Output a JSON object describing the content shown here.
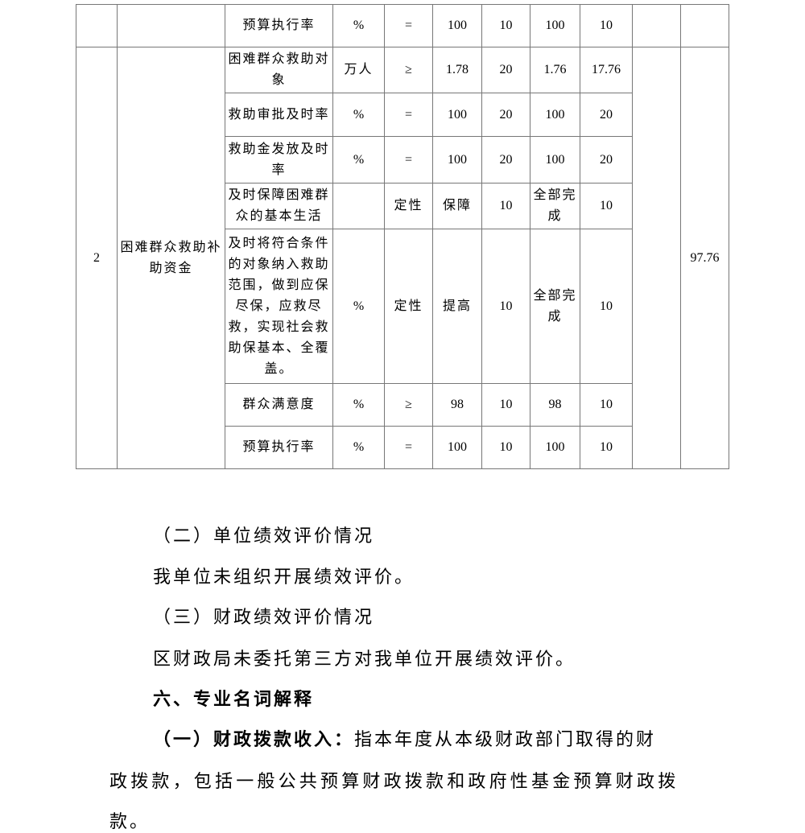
{
  "table": {
    "top_row": {
      "indicator": "预算执行率",
      "unit": "%",
      "op": "=",
      "target": "100",
      "weight": "10",
      "actual": "100",
      "score": "10"
    },
    "group": {
      "index": "2",
      "project": "困难群众救助补助资金",
      "total_score": "97.76",
      "rows": [
        {
          "indicator": "困难群众救助对象",
          "unit": "万人",
          "op": "≥",
          "target": "1.78",
          "weight": "20",
          "actual": "1.76",
          "score": "17.76"
        },
        {
          "indicator": "救助审批及时率",
          "unit": "%",
          "op": "=",
          "target": "100",
          "weight": "20",
          "actual": "100",
          "score": "20"
        },
        {
          "indicator": "救助金发放及时率",
          "unit": "%",
          "op": "=",
          "target": "100",
          "weight": "20",
          "actual": "100",
          "score": "20"
        },
        {
          "indicator": "及时保障困难群众的基本生活",
          "unit": "",
          "op": "定性",
          "target": "保障",
          "weight": "10",
          "actual": "全部完成",
          "score": "10"
        },
        {
          "indicator": "及时将符合条件的对象纳入救助范围，做到应保尽保，应救尽救，实现社会救助保基本、全覆盖。",
          "unit": "%",
          "op": "定性",
          "target": "提高",
          "weight": "10",
          "actual": "全部完成",
          "score": "10"
        },
        {
          "indicator": "群众满意度",
          "unit": "%",
          "op": "≥",
          "target": "98",
          "weight": "10",
          "actual": "98",
          "score": "10"
        },
        {
          "indicator": "预算执行率",
          "unit": "%",
          "op": "=",
          "target": "100",
          "weight": "10",
          "actual": "100",
          "score": "10"
        }
      ]
    }
  },
  "sections": {
    "s2_title": "（二）单位绩效评价情况",
    "s2_text": "我单位未组织开展绩效评价。",
    "s3_title": "（三）财政绩效评价情况",
    "s3_text": "区财政局未委托第三方对我单位开展绩效评价。",
    "s6_title": "六、专业名词解释",
    "def1_label": "（一）财政拨款收入：",
    "def1_lines": [
      "指本年度从本级财政部门取得的财",
      "政拨款，包括一般公共预算财政拨款和政府性基金预算财政拨",
      "款。"
    ]
  }
}
